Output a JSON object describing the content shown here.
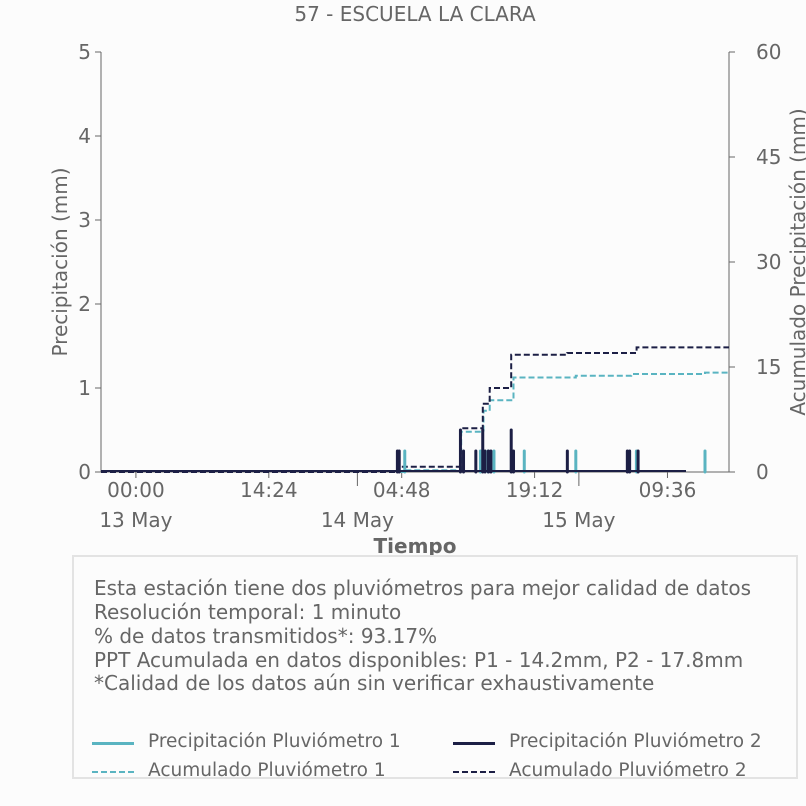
{
  "chart_data": {
    "type": "bar",
    "title": "57 - ESCUELA LA CLARA",
    "xlabel": "Tiempo",
    "ylabel": "Precipitación (mm)",
    "ylabel_right": "Acumulado Precipitación (mm)",
    "ylim": [
      0,
      5
    ],
    "ylim_right": [
      0,
      60
    ],
    "yticks": [
      "0",
      "1",
      "2",
      "3",
      "4",
      "5"
    ],
    "yticks_right": [
      "0",
      "15",
      "30",
      "45",
      "60"
    ],
    "xlim": [
      "2024-05-12T20:13",
      "2024-05-15T16:16"
    ],
    "xticks": [
      {
        "t": "2024-05-13T00:00",
        "label": "00:00"
      },
      {
        "t": "2024-05-13T14:24",
        "label": "14:24"
      },
      {
        "t": "2024-05-14T04:48",
        "label": "04:48"
      },
      {
        "t": "2024-05-14T19:12",
        "label": "19:12"
      },
      {
        "t": "2024-05-15T09:36",
        "label": "09:36"
      }
    ],
    "date_labels": [
      {
        "t": "2024-05-13T00:00",
        "label": "13 May"
      },
      {
        "t": "2024-05-14T00:00",
        "label": "14 May"
      },
      {
        "t": "2024-05-15T00:00",
        "label": "15 May"
      }
    ],
    "date_ticks": [
      "2024-05-14T00:00",
      "2024-05-15T00:00"
    ],
    "series": [
      {
        "name": "Precipitación Pluviómetro 1",
        "kind": "bars",
        "axis": "left",
        "color": "#5ab4c1",
        "points": [
          {
            "t": "2024-05-14T05:08",
            "v": 0.25
          },
          {
            "t": "2024-05-14T13:20",
            "v": 0.25
          },
          {
            "t": "2024-05-14T14:10",
            "v": 0.25
          },
          {
            "t": "2024-05-14T14:48",
            "v": 0.25
          },
          {
            "t": "2024-05-14T18:05",
            "v": 0.25
          },
          {
            "t": "2024-05-14T23:40",
            "v": 0.25
          },
          {
            "t": "2024-05-15T06:14",
            "v": 0.25
          },
          {
            "t": "2024-05-15T13:40",
            "v": 0.25
          }
        ]
      },
      {
        "name": "Precipitación Pluviómetro 2",
        "kind": "bars",
        "axis": "left",
        "color": "#1c1f45",
        "points": [
          {
            "t": "2024-05-14T04:20",
            "v": 0.25
          },
          {
            "t": "2024-05-14T04:32",
            "v": 0.25
          },
          {
            "t": "2024-05-14T11:10",
            "v": 0.5
          },
          {
            "t": "2024-05-14T11:30",
            "v": 0.25
          },
          {
            "t": "2024-05-14T12:50",
            "v": 0.25
          },
          {
            "t": "2024-05-14T13:35",
            "v": 0.5
          },
          {
            "t": "2024-05-14T13:50",
            "v": 0.25
          },
          {
            "t": "2024-05-14T14:12",
            "v": 0.25
          },
          {
            "t": "2024-05-14T14:28",
            "v": 0.25
          },
          {
            "t": "2024-05-14T16:40",
            "v": 0.5
          },
          {
            "t": "2024-05-14T16:55",
            "v": 0.25
          },
          {
            "t": "2024-05-14T22:45",
            "v": 0.25
          },
          {
            "t": "2024-05-15T05:15",
            "v": 0.25
          },
          {
            "t": "2024-05-15T05:30",
            "v": 0.25
          },
          {
            "t": "2024-05-15T06:25",
            "v": 0.25
          }
        ]
      },
      {
        "name": "Acumulado Pluviómetro 1",
        "kind": "step",
        "axis": "right",
        "color": "#5ab4c1",
        "points": [
          {
            "t": "2024-05-12T20:13",
            "v": 0
          },
          {
            "t": "2024-05-14T05:08",
            "v": 0.25
          },
          {
            "t": "2024-05-14T11:15",
            "v": 5.75
          },
          {
            "t": "2024-05-14T13:40",
            "v": 8.75
          },
          {
            "t": "2024-05-14T14:20",
            "v": 10.25
          },
          {
            "t": "2024-05-14T16:55",
            "v": 13.5
          },
          {
            "t": "2024-05-14T23:40",
            "v": 13.75
          },
          {
            "t": "2024-05-15T05:40",
            "v": 14.0
          },
          {
            "t": "2024-05-15T13:40",
            "v": 14.2
          },
          {
            "t": "2024-05-15T16:16",
            "v": 14.2
          }
        ]
      },
      {
        "name": "Acumulado Pluviómetro 2",
        "kind": "step",
        "axis": "right",
        "color": "#1c1f45",
        "points": [
          {
            "t": "2024-05-12T20:13",
            "v": 0
          },
          {
            "t": "2024-05-14T04:25",
            "v": 0.75
          },
          {
            "t": "2024-05-14T11:10",
            "v": 6.25
          },
          {
            "t": "2024-05-14T13:35",
            "v": 9.75
          },
          {
            "t": "2024-05-14T14:20",
            "v": 12.0
          },
          {
            "t": "2024-05-14T16:40",
            "v": 16.75
          },
          {
            "t": "2024-05-14T22:45",
            "v": 17.0
          },
          {
            "t": "2024-05-15T06:15",
            "v": 17.8
          },
          {
            "t": "2024-05-15T16:16",
            "v": 17.8
          }
        ]
      }
    ]
  },
  "info": {
    "lines": [
      "Esta estación tiene dos pluviómetros para mejor calidad de datos",
      "Resolución temporal: 1 minuto",
      "% de datos transmitidos*: 93.17%",
      "PPT Acumulada en datos disponibles: P1 - 14.2mm, P2 - 17.8mm",
      "*Calidad de los datos aún sin verificar exhaustivamente"
    ]
  },
  "legend": [
    {
      "label": "Precipitación Pluviómetro 1",
      "color": "#5ab4c1",
      "style": "solid"
    },
    {
      "label": "Precipitación Pluviómetro 2",
      "color": "#1c1f45",
      "style": "solid"
    },
    {
      "label": "Acumulado Pluviómetro 1",
      "color": "#5ab4c1",
      "style": "dashed"
    },
    {
      "label": "Acumulado Pluviómetro 2",
      "color": "#1c1f45",
      "style": "dashed"
    }
  ]
}
